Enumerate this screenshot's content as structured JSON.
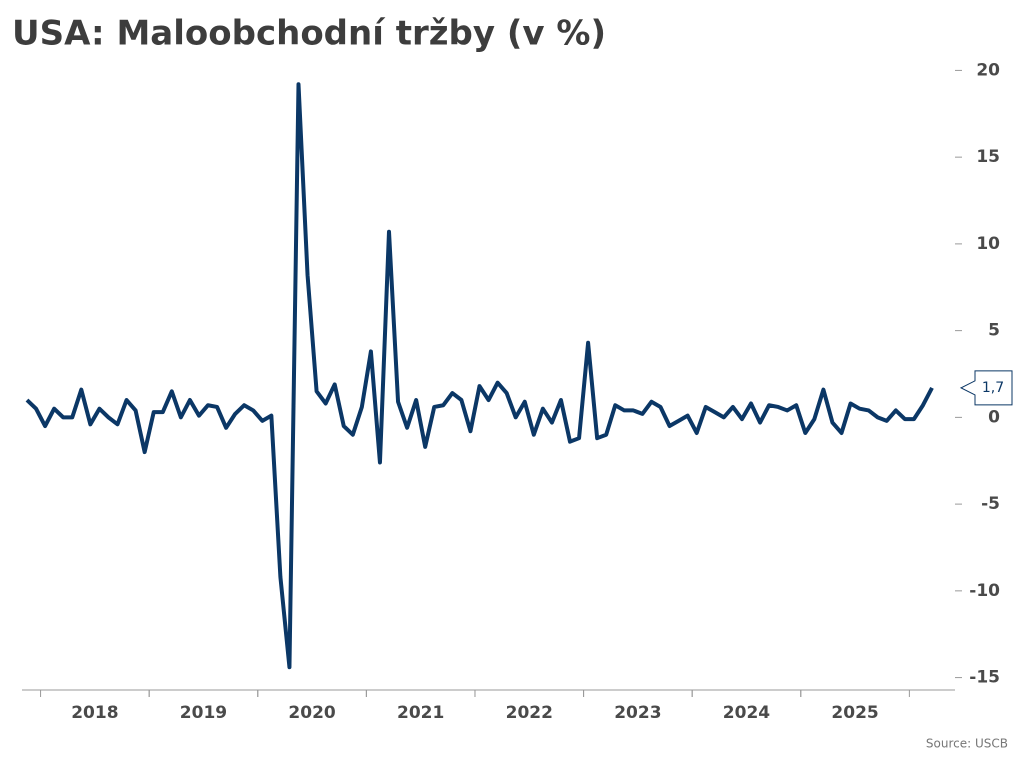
{
  "chart_data": {
    "type": "line",
    "title": "USA: Maloobchodní tržby (v %)",
    "source": "Source: USCB",
    "categories": [
      null,
      null,
      null,
      null,
      null,
      null,
      null,
      null,
      "2018",
      null,
      null,
      null,
      null,
      null,
      null,
      null,
      null,
      null,
      null,
      null,
      "2019",
      null,
      null,
      null,
      null,
      null,
      null,
      null,
      null,
      null,
      null,
      null,
      "2020",
      null,
      null,
      null,
      null,
      null,
      null,
      null,
      null,
      null,
      null,
      null,
      "2021",
      null,
      null,
      null,
      null,
      null,
      null,
      null,
      null,
      null,
      null,
      null,
      "2022",
      null,
      null,
      null,
      null,
      null,
      null,
      null,
      null,
      null,
      null,
      null,
      "2023",
      null,
      null,
      null,
      null,
      null,
      null,
      null,
      null,
      null,
      null,
      null,
      "2024",
      null,
      null,
      null,
      null,
      null,
      null,
      null,
      null,
      null,
      null,
      null,
      "2025",
      null,
      null,
      null,
      null,
      null,
      null,
      null,
      null
    ],
    "series": [
      {
        "color": "#0b3766",
        "values": [
          1.0,
          0.5,
          -0.5,
          0.5,
          0.0,
          0.0,
          1.6,
          -0.4,
          0.5,
          0.0,
          -0.4,
          1.0,
          0.4,
          -2.0,
          0.3,
          0.3,
          1.5,
          0.0,
          1.0,
          0.1,
          0.7,
          0.6,
          -0.6,
          0.2,
          0.7,
          0.4,
          -0.2,
          0.1,
          -9.2,
          -14.4,
          19.2,
          8.2,
          1.5,
          0.8,
          1.9,
          -0.5,
          -1.0,
          0.6,
          3.8,
          -2.6,
          10.7,
          0.9,
          -0.6,
          1.0,
          -1.7,
          0.6,
          0.7,
          1.4,
          1.0,
          -0.8,
          1.8,
          1.0,
          2.0,
          1.4,
          0.0,
          0.9,
          -1.0,
          0.5,
          -0.3,
          1.0,
          -1.4,
          -1.2,
          4.3,
          -1.2,
          -1.0,
          0.7,
          0.4,
          0.4,
          0.2,
          0.9,
          0.6,
          -0.5,
          -0.2,
          0.1,
          -0.9,
          0.6,
          0.3,
          0.0,
          0.6,
          -0.1,
          0.8,
          -0.3,
          0.7,
          0.6,
          0.4,
          0.7,
          -0.9,
          -0.1,
          1.6,
          -0.3,
          -0.9,
          0.8,
          0.5,
          0.4,
          0.0,
          -0.2,
          0.4,
          -0.1,
          -0.1,
          0.7,
          1.7
        ],
        "value_labels": [
          null,
          null,
          null,
          null,
          null,
          null,
          null,
          null,
          null,
          null,
          null,
          null,
          null,
          null,
          null,
          null,
          null,
          null,
          null,
          null,
          null,
          null,
          null,
          null,
          null,
          null,
          null,
          null,
          null,
          null,
          null,
          null,
          null,
          null,
          null,
          null,
          null,
          null,
          null,
          null,
          null,
          null,
          null,
          null,
          null,
          null,
          null,
          null,
          null,
          null,
          null,
          null,
          null,
          null,
          null,
          null,
          null,
          null,
          null,
          null,
          null,
          null,
          null,
          null,
          null,
          null,
          null,
          null,
          null,
          null,
          null,
          null,
          null,
          null,
          null,
          null,
          null,
          null,
          null,
          null,
          null,
          null,
          null,
          null,
          null,
          null,
          null,
          null,
          null,
          null,
          null,
          null,
          null,
          null,
          null,
          null,
          null,
          null,
          null,
          null,
          "1,7"
        ]
      }
    ],
    "ylim": [
      -15.6,
      20.6
    ],
    "yticks": [
      -15,
      -10,
      -5,
      0,
      5,
      10,
      15,
      20
    ],
    "grid": false
  }
}
